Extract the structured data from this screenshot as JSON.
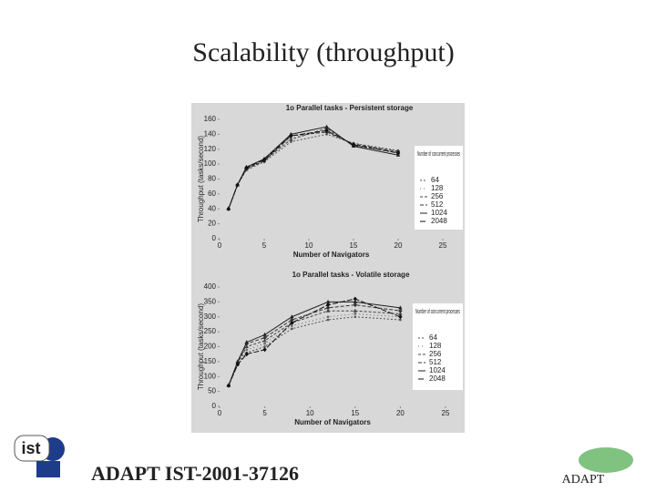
{
  "title": "Scalability (throughput)",
  "footer": "ADAPT IST-2001-37126",
  "logo_left": "ist",
  "logo_right": "ADAPT",
  "chart_data": [
    {
      "type": "line",
      "title": "1o Parallel tasks - Persistent storage",
      "x_label": "Number of Navigators",
      "y_label": "Throughput (tasks/second)",
      "legend_title": "Number of concurrent processes",
      "x": [
        1,
        2,
        3,
        5,
        8,
        12,
        15,
        20
      ],
      "xlim": [
        0,
        25
      ],
      "xticks": [
        0,
        5,
        10,
        15,
        20,
        25
      ],
      "ylim": [
        0,
        160
      ],
      "yticks": [
        0,
        20,
        40,
        60,
        80,
        100,
        120,
        140,
        160
      ],
      "series": [
        {
          "name": "64",
          "color": "#555555",
          "values": [
            40,
            72,
            92,
            103,
            130,
            140,
            128,
            118
          ]
        },
        {
          "name": "128",
          "color": "#666666",
          "values": [
            40,
            72,
            95,
            106,
            135,
            145,
            126,
            116
          ]
        },
        {
          "name": "256",
          "color": "#444444",
          "values": [
            40,
            72,
            93,
            105,
            133,
            148,
            125,
            115
          ]
        },
        {
          "name": "512",
          "color": "#333333",
          "values": [
            40,
            72,
            94,
            104,
            138,
            143,
            127,
            117
          ]
        },
        {
          "name": "1024",
          "color": "#222222",
          "values": [
            40,
            72,
            96,
            107,
            140,
            150,
            124,
            112
          ]
        },
        {
          "name": "2048",
          "color": "#111111",
          "values": [
            40,
            72,
            95,
            106,
            138,
            145,
            126,
            115
          ]
        }
      ]
    },
    {
      "type": "line",
      "title": "1o Parallel tasks - Volatile storage",
      "x_label": "Number of Navigators",
      "y_label": "Throughput (tasks/second)",
      "legend_title": "Number of concurrent processes",
      "x": [
        1,
        2,
        3,
        5,
        8,
        12,
        15,
        20
      ],
      "xlim": [
        0,
        25
      ],
      "xticks": [
        0,
        5,
        10,
        15,
        20,
        25
      ],
      "ylim": [
        0,
        400
      ],
      "yticks": [
        0,
        50,
        100,
        150,
        200,
        250,
        300,
        350,
        400
      ],
      "series": [
        {
          "name": "64",
          "color": "#555555",
          "values": [
            70,
            140,
            180,
            200,
            260,
            290,
            300,
            290
          ]
        },
        {
          "name": "128",
          "color": "#666666",
          "values": [
            70,
            140,
            190,
            210,
            270,
            300,
            310,
            300
          ]
        },
        {
          "name": "256",
          "color": "#444444",
          "values": [
            70,
            145,
            200,
            220,
            280,
            320,
            320,
            310
          ]
        },
        {
          "name": "512",
          "color": "#333333",
          "values": [
            70,
            145,
            210,
            230,
            290,
            330,
            340,
            320
          ]
        },
        {
          "name": "1024",
          "color": "#222222",
          "values": [
            70,
            150,
            215,
            240,
            300,
            350,
            350,
            330
          ]
        },
        {
          "name": "2048",
          "color": "#111111",
          "values": [
            70,
            140,
            175,
            190,
            280,
            340,
            360,
            300
          ]
        }
      ]
    }
  ]
}
